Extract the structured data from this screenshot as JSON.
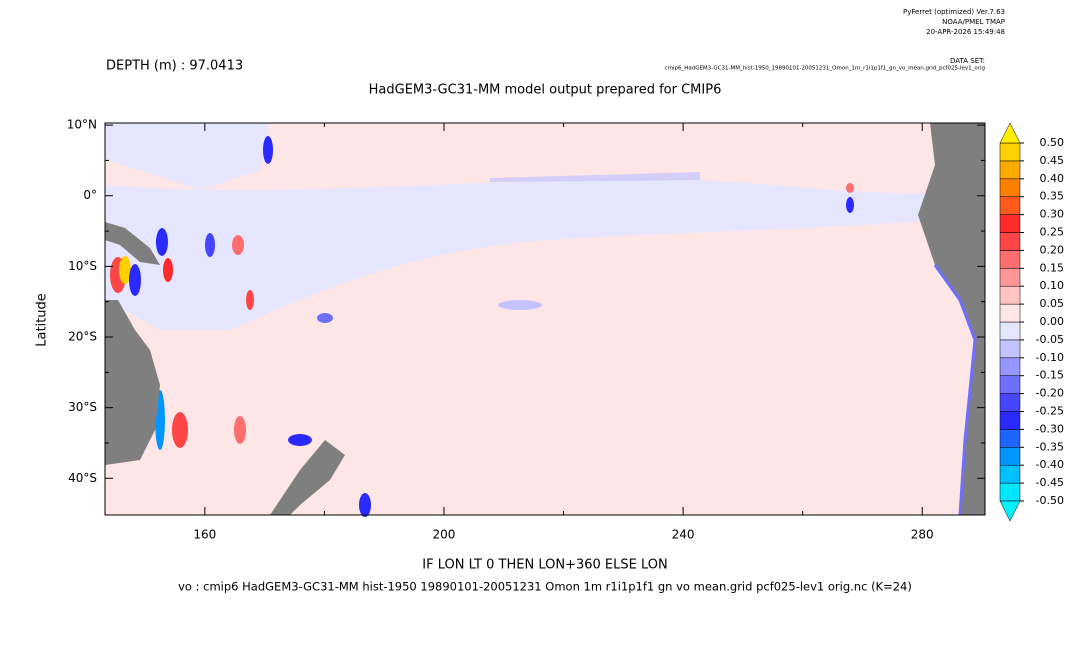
{
  "header": {
    "software": "PyFerret (optimized) Ver.7.63",
    "lab": "NOAA/PMEL TMAP",
    "date": "20-APR-2026 15:49:48",
    "dataset_label": "DATA SET:",
    "dataset": "cmip6_HadGEM3-GC31-MM_hist-1950_19890101-20051231_Omon_1m_r1i1p1f1_gn_vo_mean.grid_pcf025-lev1_orig",
    "depth": "DEPTH (m) : 97.0413"
  },
  "chart_data": {
    "type": "map",
    "title": "HadGEM3-GC31-MM model output prepared for CMIP6",
    "xlabel": "IF LON LT 0 THEN LON+360 ELSE LON",
    "ylabel": "Latitude",
    "xlim": [
      143.3,
      290.5
    ],
    "ylim": [
      -45.2,
      10.3
    ],
    "xticks": [
      160,
      200,
      240,
      280
    ],
    "yticks": [
      {
        "value": 10,
        "label": "10°N"
      },
      {
        "value": 0,
        "label": "0°"
      },
      {
        "value": -10,
        "label": "10°S"
      },
      {
        "value": -20,
        "label": "20°S"
      },
      {
        "value": -30,
        "label": "30°S"
      },
      {
        "value": -40,
        "label": "40°S"
      }
    ],
    "footer": "vo : cmip6 HadGEM3-GC31-MM hist-1950 19890101-20051231 Omon 1m r1i1p1f1 gn vo mean.grid pcf025-lev1 orig.nc (K=24)",
    "colorbar": {
      "levels": [
        {
          "value": -0.5,
          "label": "-0.50"
        },
        {
          "value": -0.45,
          "label": "-0.45"
        },
        {
          "value": -0.4,
          "label": "-0.40"
        },
        {
          "value": -0.35,
          "label": "-0.35"
        },
        {
          "value": -0.3,
          "label": "-0.30"
        },
        {
          "value": -0.25,
          "label": "-0.25"
        },
        {
          "value": -0.2,
          "label": "-0.20"
        },
        {
          "value": -0.15,
          "label": "-0.15"
        },
        {
          "value": -0.1,
          "label": "-0.10"
        },
        {
          "value": -0.05,
          "label": "-0.05"
        },
        {
          "value": 0,
          "label": "0.00"
        },
        {
          "value": 0.05,
          "label": "0.05"
        },
        {
          "value": 0.1,
          "label": "0.10"
        },
        {
          "value": 0.15,
          "label": "0.15"
        },
        {
          "value": 0.2,
          "label": "0.20"
        },
        {
          "value": 0.25,
          "label": "0.25"
        },
        {
          "value": 0.3,
          "label": "0.30"
        },
        {
          "value": 0.35,
          "label": "0.35"
        },
        {
          "value": 0.4,
          "label": "0.40"
        },
        {
          "value": 0.45,
          "label": "0.45"
        },
        {
          "value": 0.5,
          "label": "0.50"
        }
      ],
      "colors": [
        "#00e6ff",
        "#00bfff",
        "#0096ff",
        "#1e64ff",
        "#2a2aff",
        "#4646ff",
        "#6e6eff",
        "#9696ff",
        "#c3c3ff",
        "#e6e6ff",
        "#ffe6e6",
        "#ffc3c3",
        "#ff9696",
        "#ff6e6e",
        "#ff4646",
        "#ff2a2a",
        "#ff5a1e",
        "#ff8000",
        "#ffaa00",
        "#ffd000"
      ],
      "under_color": "#00f0ff",
      "over_color": "#ffee00"
    }
  }
}
